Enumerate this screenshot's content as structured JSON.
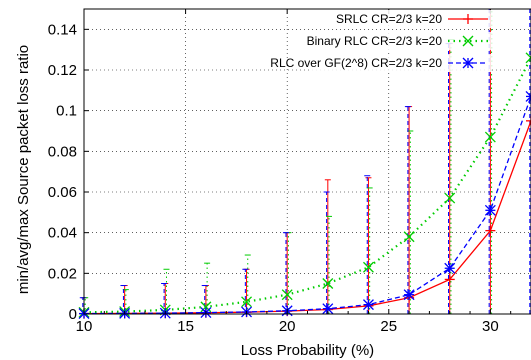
{
  "chart_data": {
    "type": "line",
    "xlabel": "Loss Probability (%)",
    "ylabel": "min/avg/max Source packet loss ratio",
    "xlim": [
      10,
      32
    ],
    "ylim": [
      0,
      0.15
    ],
    "x_ticks": [
      10,
      15,
      20,
      25,
      30
    ],
    "y_ticks": [
      0,
      0.02,
      0.04,
      0.06,
      0.08,
      0.1,
      0.12,
      0.14
    ],
    "x_tick_labels": [
      "10",
      "15",
      "20",
      "25",
      "30"
    ],
    "y_tick_labels": [
      "0",
      "0.02",
      "0.04",
      "0.06",
      "0.08",
      "0.1",
      "0.12",
      "0.14"
    ],
    "grid": true,
    "legend_position": "top-right",
    "x": [
      10,
      12,
      14,
      16,
      18,
      20,
      22,
      24,
      26,
      28,
      30,
      32
    ],
    "series": [
      {
        "name": "SRLC CR=2/3 k=20",
        "color": "#ff0000",
        "line_style": "solid",
        "marker": "plus",
        "avg": [
          0.0002,
          0.0003,
          0.0004,
          0.0006,
          0.0009,
          0.0014,
          0.0022,
          0.004,
          0.008,
          0.017,
          0.041,
          0.095
        ],
        "max": [
          0.008,
          0.014,
          0.015,
          0.014,
          0.022,
          0.04,
          0.066,
          0.067,
          0.102,
          0.133,
          0.15,
          0.15
        ],
        "min": [
          0,
          0,
          0,
          0,
          0,
          0,
          0,
          0,
          0,
          0,
          0,
          0
        ]
      },
      {
        "name": "Binary RLC CR=2/3 k=20",
        "color": "#00cc00",
        "line_style": "dotted",
        "marker": "cross",
        "avg": [
          0.0008,
          0.0012,
          0.002,
          0.0035,
          0.006,
          0.0095,
          0.015,
          0.023,
          0.038,
          0.057,
          0.087,
          0.126
        ],
        "max": [
          0.008,
          0.012,
          0.022,
          0.025,
          0.029,
          0.04,
          0.048,
          0.062,
          0.09,
          0.135,
          0.15,
          0.15
        ],
        "min": [
          0,
          0,
          0,
          0,
          0,
          0,
          0,
          0,
          0,
          0,
          0,
          0
        ]
      },
      {
        "name": "RLC over GF(2^8) CR=2/3 k=20",
        "color": "#0000ff",
        "line_style": "dashed",
        "marker": "star",
        "avg": [
          0.0002,
          0.0003,
          0.0004,
          0.0007,
          0.001,
          0.0016,
          0.0026,
          0.0046,
          0.0095,
          0.0225,
          0.051,
          0.107
        ],
        "max": [
          0.008,
          0.014,
          0.015,
          0.014,
          0.022,
          0.04,
          0.06,
          0.068,
          0.102,
          0.133,
          0.15,
          0.15
        ],
        "min": [
          0,
          0,
          0,
          0,
          0,
          0,
          0,
          0,
          0,
          0,
          0,
          0
        ]
      }
    ]
  }
}
